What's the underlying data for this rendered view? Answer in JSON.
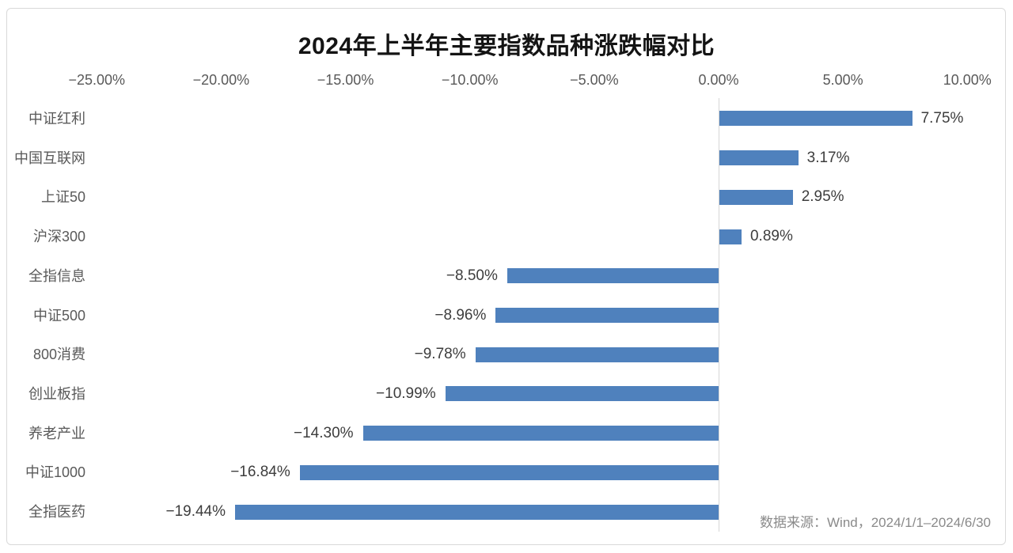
{
  "page": {
    "background": "#ffffff",
    "frame_border_color": "#d9d9d9"
  },
  "chart_data": {
    "type": "bar",
    "orientation": "horizontal",
    "title": "2024年上半年主要指数品种涨跌幅对比",
    "categories": [
      "中证红利",
      "中国互联网",
      "上证50",
      "沪深300",
      "全指信息",
      "中证500",
      "800消费",
      "创业板指",
      "养老产业",
      "中证1000",
      "全指医药"
    ],
    "values": [
      7.75,
      3.17,
      2.95,
      0.89,
      -8.5,
      -8.96,
      -9.78,
      -10.99,
      -14.3,
      -16.84,
      -19.44
    ],
    "value_labels": [
      "7.75%",
      "3.17%",
      "2.95%",
      "0.89%",
      "−8.50%",
      "−8.96%",
      "−9.78%",
      "−10.99%",
      "−14.30%",
      "−16.84%",
      "−19.44%"
    ],
    "x_axis": {
      "ticks": [
        -25,
        -20,
        -15,
        -10,
        -5,
        0,
        5,
        10
      ],
      "tick_labels": [
        "−25.00%",
        "−20.00%",
        "−15.00%",
        "−10.00%",
        "−5.00%",
        "0.00%",
        "5.00%",
        "10.00%"
      ],
      "range": [
        -25,
        11.6
      ],
      "unit": "%"
    },
    "grid": false,
    "legend": null,
    "bar_color": "#4f81bd",
    "zero_line_color": "#d6d6d6",
    "source_note": "数据来源：Wind，2024/1/1–2024/6/30"
  }
}
